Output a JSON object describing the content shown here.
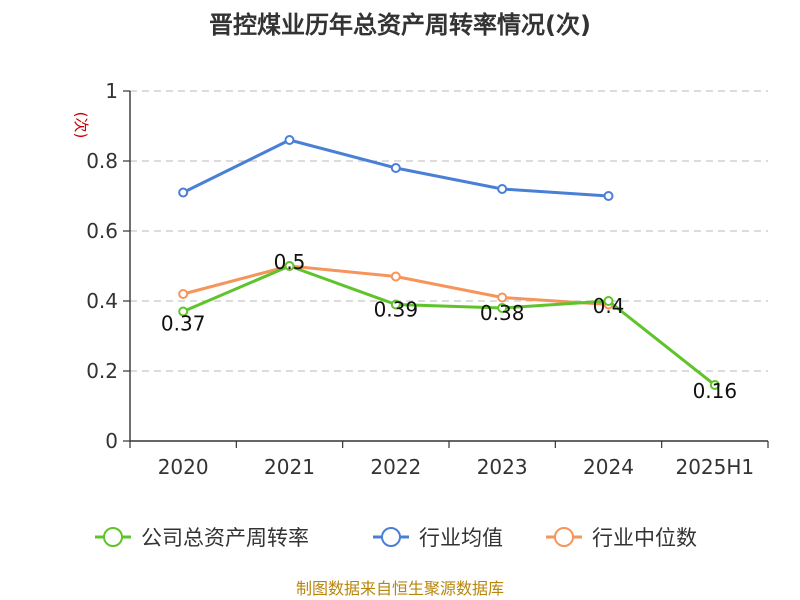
{
  "chart_data": {
    "type": "line",
    "title": "晋控煤业历年总资产周转率情况(次)",
    "ylabel": "(次)",
    "ylim": [
      0,
      1
    ],
    "yticks": [
      "0",
      "0.2",
      "0.4",
      "0.6",
      "0.8",
      "1"
    ],
    "categories": [
      "2020",
      "2021",
      "2022",
      "2023",
      "2024",
      "2025H1"
    ],
    "grid": true,
    "legend_position": "bottom",
    "series": [
      {
        "name": "公司总资产周转率",
        "color": "#5fc42b",
        "values": [
          0.37,
          0.5,
          0.39,
          0.38,
          0.4,
          0.16
        ],
        "labels": [
          "0.37",
          "0.5",
          "0.39",
          "0.38",
          "0.4",
          "0.16"
        ]
      },
      {
        "name": "行业均值",
        "color": "#4a7fd6",
        "values": [
          0.71,
          0.86,
          0.78,
          0.72,
          0.7,
          null
        ]
      },
      {
        "name": "行业中位数",
        "color": "#f5955a",
        "values": [
          0.42,
          0.5,
          0.47,
          0.41,
          0.39,
          null
        ]
      }
    ]
  },
  "source": "制图数据来自恒生聚源数据库"
}
